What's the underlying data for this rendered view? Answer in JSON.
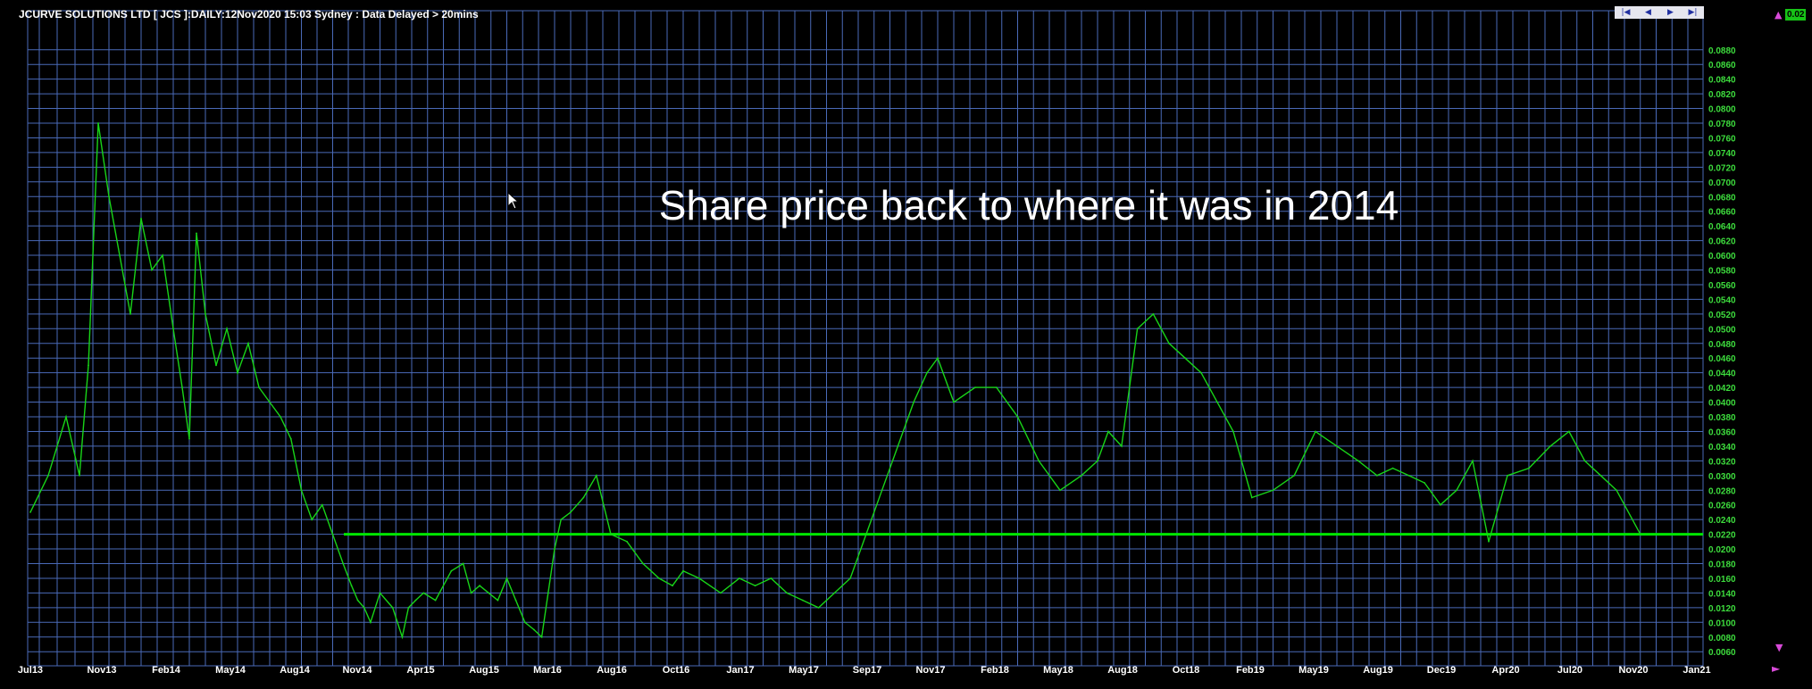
{
  "header": {
    "title": "JCURVE SOLUTIONS LTD [ JCS ]:DAILY:12Nov2020 15:03 Sydney : Data Delayed > 20mins"
  },
  "nav": {
    "first_icon": "skip-first-icon",
    "prev_icon": "prev-icon",
    "next_icon": "next-icon",
    "last_icon": "skip-last-icon",
    "first": "|◀",
    "prev": "◀",
    "next": "▶",
    "last": "▶|"
  },
  "price_badge": "0.02",
  "colors": {
    "background": "#000000",
    "grid": "#4a6ab8",
    "price_line": "#18d418",
    "support_line": "#00e600",
    "tick_label": "#3ddc3d",
    "annotation": "#ffffff",
    "marker_arrows": "#d84ad8"
  },
  "chart_data": {
    "type": "line",
    "title": "",
    "xlabel": "",
    "ylabel": "",
    "annotation": "Share price back to where it was in 2014",
    "grid": true,
    "legend": "none",
    "x_ticks": [
      "Jul13",
      "Nov13",
      "Feb14",
      "May14",
      "Aug14",
      "Nov14",
      "Apr15",
      "Aug15",
      "Mar16",
      "Aug16",
      "Oct16",
      "Jan17",
      "May17",
      "Sep17",
      "Nov17",
      "Feb18",
      "May18",
      "Aug18",
      "Oct18",
      "Feb19",
      "May19",
      "Aug19",
      "Dec19",
      "Apr20",
      "Jul20",
      "Nov20",
      "Jan21"
    ],
    "y_ticks": [
      "0.0880",
      "0.0860",
      "0.0840",
      "0.0820",
      "0.0800",
      "0.0780",
      "0.0760",
      "0.0740",
      "0.0720",
      "0.0700",
      "0.0680",
      "0.0660",
      "0.0640",
      "0.0620",
      "0.0600",
      "0.0580",
      "0.0560",
      "0.0540",
      "0.0520",
      "0.0500",
      "0.0480",
      "0.0460",
      "0.0440",
      "0.0420",
      "0.0400",
      "0.0380",
      "0.0360",
      "0.0340",
      "0.0320",
      "0.0300",
      "0.0280",
      "0.0260",
      "0.0240",
      "0.0220",
      "0.0200",
      "0.0180",
      "0.0160",
      "0.0140",
      "0.0120",
      "0.0100",
      "0.0080",
      "0.0060"
    ],
    "ylim": [
      0.005,
      0.09
    ],
    "support_level": 0.022,
    "series": [
      {
        "dates": [
          "Jul13",
          "Aug13",
          "Sep13",
          "Oct13",
          "Oct13",
          "Nov13",
          "Nov13",
          "Dec13",
          "Dec13",
          "Jan14",
          "Jan14",
          "Feb14",
          "Feb14",
          "Mar14",
          "Mar14",
          "Mar14",
          "Apr14",
          "Apr14",
          "May14",
          "May14",
          "Jun14",
          "Jun14",
          "Jul14",
          "Jul14",
          "Aug14",
          "Aug14",
          "Sep14",
          "Sep14",
          "Oct14",
          "Oct14",
          "Nov14",
          "Nov14",
          "Dec14",
          "Dec14",
          "Jan15",
          "Feb15",
          "Mar15",
          "Mar15",
          "Apr15",
          "Apr15",
          "May15",
          "Jun15",
          "Jul15",
          "Jul15",
          "Aug15",
          "Sep15",
          "Oct15",
          "Nov15",
          "Dec15",
          "Jan16",
          "Feb16",
          "Mar16",
          "Mar16",
          "Apr16",
          "Apr16",
          "May16",
          "Jun16",
          "Jul16",
          "Aug16",
          "Aug16",
          "Sep16",
          "Sep16",
          "Oct16",
          "Oct16",
          "Nov16",
          "Dec16",
          "Jan17",
          "Feb17",
          "Mar17",
          "Apr17",
          "May17",
          "Jun17",
          "Jul17",
          "Aug17",
          "Sep17",
          "Sep17",
          "Oct17",
          "Oct17",
          "Nov17",
          "Nov17",
          "Dec17",
          "Jan18",
          "Feb18",
          "Mar18",
          "Apr18",
          "May18",
          "Jun18",
          "Jul18",
          "Jul18",
          "Aug18",
          "Aug18",
          "Sep18",
          "Sep18",
          "Oct18",
          "Nov18",
          "Dec18",
          "Jan19",
          "Feb19",
          "Mar19",
          "Apr19",
          "May19",
          "Jun19",
          "Jul19",
          "Aug19",
          "Sep19",
          "Oct19",
          "Nov19",
          "Dec19",
          "Jan20",
          "Feb20",
          "Mar20",
          "Apr20",
          "May20",
          "Jun20",
          "Jul20",
          "Aug20",
          "Sep20",
          "Oct20",
          "Nov20"
        ],
        "values": [
          0.025,
          0.03,
          0.038,
          0.03,
          0.045,
          0.078,
          0.068,
          0.06,
          0.052,
          0.065,
          0.058,
          0.06,
          0.05,
          0.042,
          0.035,
          0.063,
          0.052,
          0.045,
          0.05,
          0.044,
          0.048,
          0.042,
          0.04,
          0.038,
          0.035,
          0.028,
          0.024,
          0.026,
          0.022,
          0.018,
          0.015,
          0.013,
          0.012,
          0.01,
          0.014,
          0.012,
          0.008,
          0.012,
          0.013,
          0.014,
          0.013,
          0.017,
          0.018,
          0.014,
          0.015,
          0.014,
          0.013,
          0.016,
          0.013,
          0.01,
          0.009,
          0.008,
          0.014,
          0.02,
          0.024,
          0.025,
          0.027,
          0.03,
          0.022,
          0.021,
          0.018,
          0.016,
          0.015,
          0.017,
          0.016,
          0.014,
          0.016,
          0.015,
          0.016,
          0.014,
          0.013,
          0.012,
          0.014,
          0.016,
          0.022,
          0.028,
          0.034,
          0.04,
          0.044,
          0.046,
          0.04,
          0.042,
          0.042,
          0.038,
          0.032,
          0.028,
          0.03,
          0.032,
          0.036,
          0.034,
          0.05,
          0.052,
          0.048,
          0.046,
          0.044,
          0.04,
          0.036,
          0.027,
          0.028,
          0.03,
          0.036,
          0.034,
          0.032,
          0.03,
          0.031,
          0.03,
          0.029,
          0.026,
          0.028,
          0.032,
          0.021,
          0.03,
          0.031,
          0.034,
          0.036,
          0.032,
          0.03,
          0.028,
          0.022
        ]
      }
    ]
  }
}
